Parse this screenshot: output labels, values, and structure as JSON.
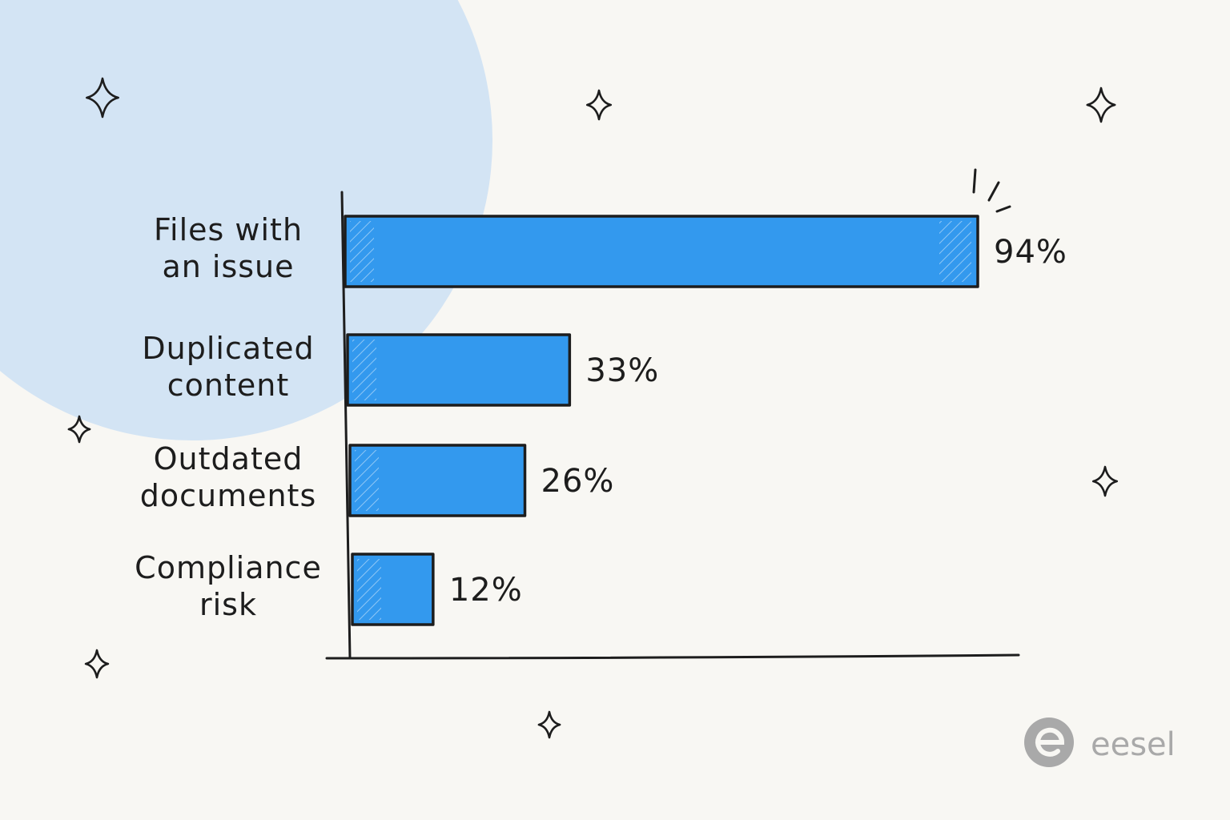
{
  "chart_data": {
    "type": "bar",
    "orientation": "horizontal",
    "categories": [
      [
        "Files with",
        "an issue"
      ],
      [
        "Duplicated",
        "content"
      ],
      [
        "Outdated",
        "documents"
      ],
      [
        "Compliance",
        "risk"
      ]
    ],
    "values": [
      94,
      33,
      26,
      12
    ],
    "value_labels": [
      "94%",
      "33%",
      "26%",
      "12%"
    ],
    "xlim": [
      0,
      100
    ],
    "bar_color": "#3399ee",
    "title": "",
    "xlabel": "",
    "ylabel": "",
    "grid": false,
    "highlight_index": 0
  },
  "colors": {
    "background": "#f8f7f3",
    "circle": "#d3e4f4",
    "bar": "#3399ee",
    "ink": "#1d1d1d",
    "logo": "#a9a9a9"
  },
  "decorations": {
    "sparkle_icon": "four-point-star-icon",
    "highlight_icon": "emphasis-burst-icon"
  },
  "brand": {
    "name": "eesel",
    "icon": "eesel-logo-icon"
  }
}
